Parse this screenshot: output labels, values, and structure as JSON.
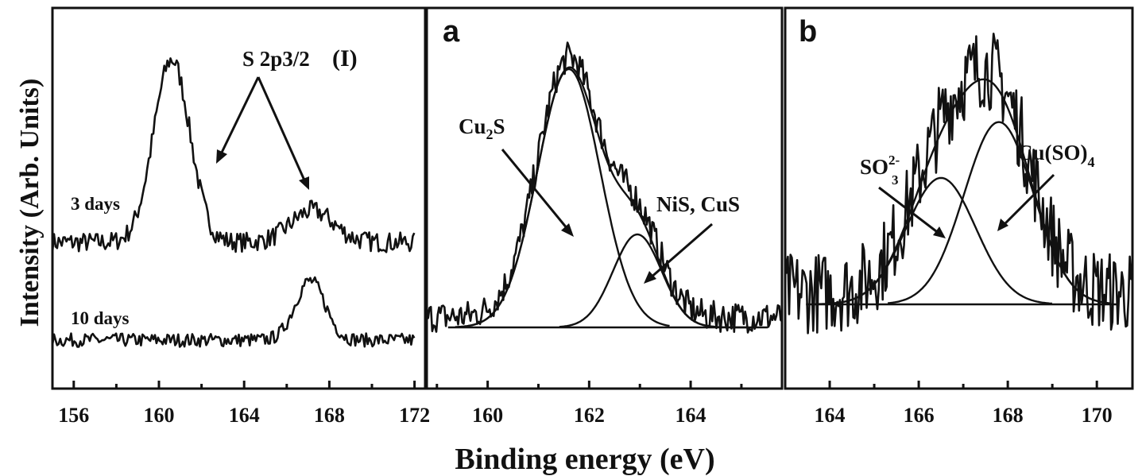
{
  "figure": {
    "ylabel": "Intensity (Arb. Units)",
    "xlabel": "Binding energy (eV)"
  },
  "panels": {
    "p1": {
      "label": "(I)",
      "peak_label": "S 2p3/2",
      "series_labels": [
        "3 days",
        "10 days"
      ],
      "ticks": [
        "156",
        "160",
        "164",
        "168",
        "172"
      ]
    },
    "pa": {
      "label": "a",
      "comp1_main": "Cu",
      "comp1_sub": "2",
      "comp1_tail": "S",
      "comp2": "NiS, CuS",
      "ticks": [
        "160",
        "162",
        "164"
      ]
    },
    "pb": {
      "label": "b",
      "comp1_main": "SO",
      "comp1_sub": "3",
      "comp1_sup": "2-",
      "comp2_main": "Cu(SO)",
      "comp2_sub": "4",
      "ticks": [
        "164",
        "166",
        "168",
        "170"
      ]
    }
  },
  "chart_data": [
    {
      "type": "line",
      "panel": "(I)",
      "xlabel": "Binding energy (eV)",
      "ylabel": "Intensity (Arb. Units)",
      "xlim": [
        155,
        172.5
      ],
      "xticks": [
        156,
        160,
        164,
        168,
        172
      ],
      "annotation": "S 2p3/2",
      "annotation_targets": [
        162.3,
        167.3
      ],
      "series": [
        {
          "name": "3 days",
          "peaks": [
            {
              "center": 160.6,
              "height": 0.92,
              "width": 0.85
            },
            {
              "center": 167.2,
              "height": 0.16,
              "width": 1.0
            }
          ],
          "baseline": 0.16,
          "noise": 0.05
        },
        {
          "name": "10 days",
          "peaks": [
            {
              "center": 167.1,
              "height": 0.44,
              "width": 0.7
            }
          ],
          "baseline": 0.16,
          "noise": 0.05
        }
      ]
    },
    {
      "type": "line",
      "panel": "a",
      "xlim": [
        158.8,
        165.8
      ],
      "xticks": [
        160,
        162,
        164
      ],
      "components": [
        {
          "name": "Cu2S",
          "center": 161.6,
          "height": 1.0,
          "sigma": 0.62
        },
        {
          "name": "NiS, CuS",
          "center": 162.95,
          "height": 0.36,
          "sigma": 0.48
        }
      ],
      "baseline": 0.0,
      "noise": 0.06
    },
    {
      "type": "line",
      "panel": "b",
      "xlim": [
        163,
        170.8
      ],
      "xticks": [
        164,
        166,
        168,
        170
      ],
      "components": [
        {
          "name": "SO3 2-",
          "center": 166.5,
          "height": 0.43,
          "sigma": 0.78
        },
        {
          "name": "Cu(SO)4",
          "center": 167.8,
          "height": 0.62,
          "sigma": 0.78
        }
      ],
      "baseline": 0.0,
      "noise": 0.14
    }
  ]
}
